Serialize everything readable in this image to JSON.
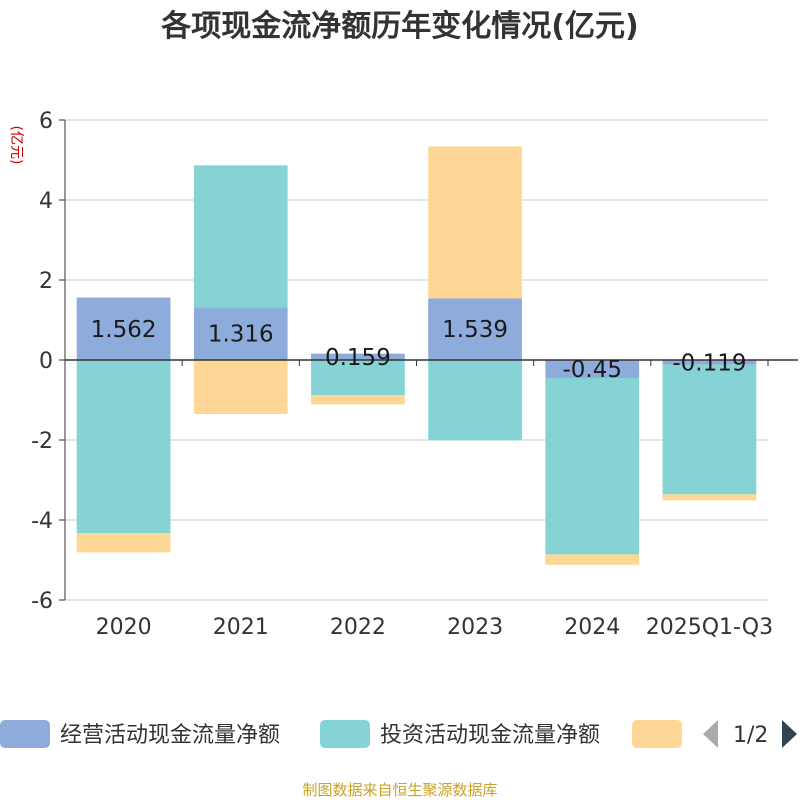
{
  "chart_data": {
    "type": "bar",
    "stacked": true,
    "title": "各项现金流净额历年变化情况(亿元)",
    "ylabel": "(亿元)",
    "categories": [
      "2020",
      "2021",
      "2022",
      "2023",
      "2024",
      "2025Q1-Q3"
    ],
    "ylim": [
      -6,
      6
    ],
    "yticks": [
      "6",
      "4",
      "2",
      "0",
      "-2",
      "-4",
      "-6"
    ],
    "series": [
      {
        "name": "经营活动现金流量净额",
        "color": "#8eacdb",
        "values": [
          1.562,
          1.316,
          0.159,
          1.539,
          -0.45,
          -0.119
        ]
      },
      {
        "name": "投资活动现金流量净额",
        "color": "#86d3d6",
        "values": [
          -4.33,
          3.55,
          -0.88,
          -2.01,
          -4.41,
          -3.24
        ]
      },
      {
        "name": "",
        "color": "#fed796",
        "values": [
          -0.48,
          -1.35,
          -0.23,
          3.8,
          -0.26,
          -0.15
        ]
      }
    ],
    "data_labels": [
      "1.562",
      "1.316",
      "0.159",
      "1.539",
      "-0.45",
      "-0.119"
    ],
    "grid": true,
    "legend_position": "bottom"
  },
  "legend": {
    "page_indicator": "1/2"
  },
  "source": "制图数据来自恒生聚源数据库"
}
